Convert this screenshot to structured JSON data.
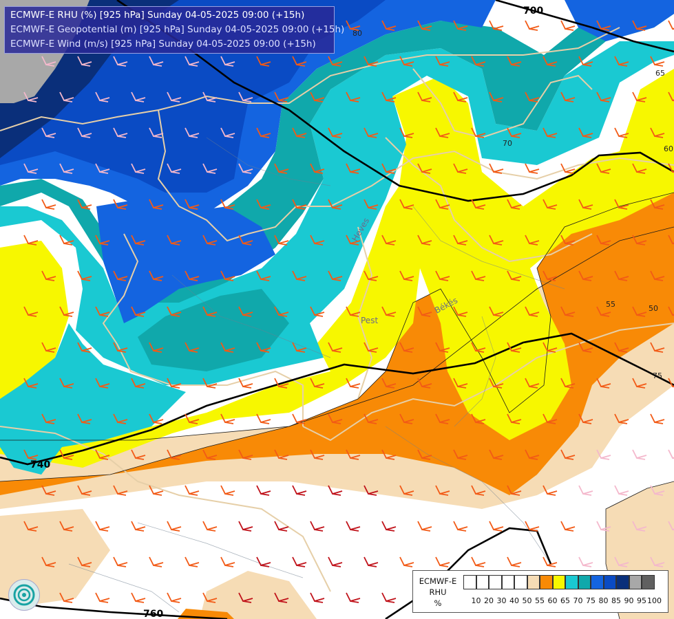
{
  "header": {
    "line1": "ECMWF-E RHU (%) [925 hPa] Sunday 04-05-2025 09:00 (+15h)",
    "line2": "ECMWF-E Geopotential (m) [925 hPa] Sunday 04-05-2025 09:00 (+15h)",
    "line3": "ECMWF-E Wind (m/s) [925 hPa] Sunday 04-05-2025 09:00 (+15h)"
  },
  "map": {
    "geopotential_contour_labels": [
      "700",
      "740",
      "760"
    ],
    "rhu_contour_labels": [
      "80",
      "75",
      "70",
      "65",
      "60",
      "55",
      "50"
    ],
    "region_labels": [
      "Pest",
      "Békés",
      "Heves"
    ]
  },
  "legend": {
    "model": "ECMWF-E",
    "variable": "RHU",
    "unit": "%",
    "ticks": [
      "10",
      "20",
      "30",
      "40",
      "50",
      "55",
      "60",
      "65",
      "70",
      "75",
      "80",
      "85",
      "90",
      "95",
      "100"
    ],
    "colors": [
      "#ffffff",
      "#ffffff",
      "#ffffff",
      "#ffffff",
      "#ffffff",
      "#f6dcb5",
      "#f88a06",
      "#f7f700",
      "#1ac9d2",
      "#10a8ab",
      "#1464e0",
      "#0a4bc4",
      "#0a2f7a",
      "#a8a8a8",
      "#606060"
    ]
  },
  "colors": {
    "rhu_50_55": "#f6dcb5",
    "rhu_55_60": "#f88a06",
    "rhu_60_65": "#f7f700",
    "rhu_65_70": "#1ac9d2",
    "rhu_70_75": "#10a8ab",
    "rhu_75_80": "#1464e0",
    "rhu_80_85": "#0a4bc4",
    "rhu_85_90": "#0a2f7a",
    "rhu_90_95": "#a8a8a8",
    "geopotential_line": "#000000",
    "border_line": "#e6cfa8"
  }
}
